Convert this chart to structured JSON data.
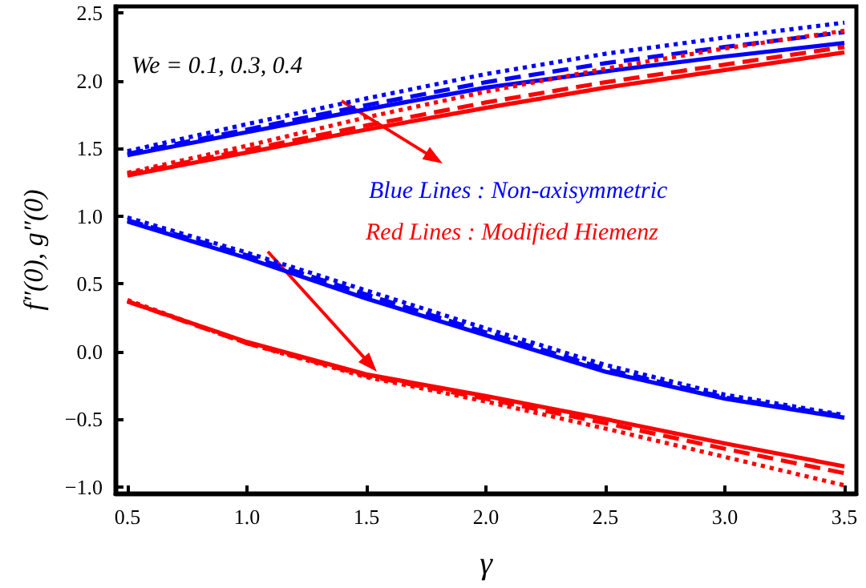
{
  "chart_data": {
    "type": "line",
    "xlabel": "γ",
    "ylabel": "f″(0), g″(0)",
    "x": [
      0.5,
      1,
      1.5,
      2,
      2.5,
      3,
      3.5
    ],
    "xlim": [
      0.45,
      3.55
    ],
    "ylim": [
      -1.05,
      2.55
    ],
    "xticks": [
      {
        "value": 0.5,
        "label": "0.5"
      },
      {
        "value": 1,
        "label": "1.0"
      },
      {
        "value": 1.5,
        "label": "1.5"
      },
      {
        "value": 2,
        "label": "2.0"
      },
      {
        "value": 2.5,
        "label": "2.5"
      },
      {
        "value": 3,
        "label": "3.0"
      },
      {
        "value": 3.5,
        "label": "3.5"
      }
    ],
    "yticks": [
      {
        "value": -1,
        "label": "−1.0"
      },
      {
        "value": -0.5,
        "label": "−0.5"
      },
      {
        "value": 0,
        "label": "0.0"
      },
      {
        "value": 0.5,
        "label": "0.5"
      },
      {
        "value": 1,
        "label": "1.0"
      },
      {
        "value": 1.5,
        "label": "1.5"
      },
      {
        "value": 2,
        "label": "2.0"
      },
      {
        "value": 2.5,
        "label": "2.5"
      }
    ],
    "grid": false,
    "marker": "none",
    "annotations": [
      "We = 0.1, 0.3, 0.4",
      "Blue Lines : Non-axisymmetric",
      "Red Lines : Modified Hiemenz"
    ],
    "series": [
      {
        "color": "#0000ff",
        "line_style": "solid",
        "values": [
          1.45,
          1.62,
          1.79,
          1.95,
          2.07,
          2.18,
          2.28
        ]
      },
      {
        "color": "#0000ff",
        "line_style": "dashed",
        "values": [
          1.46,
          1.64,
          1.82,
          1.99,
          2.13,
          2.25,
          2.36
        ]
      },
      {
        "color": "#0000ff",
        "line_style": "dotted",
        "values": [
          1.48,
          1.68,
          1.87,
          2.05,
          2.2,
          2.32,
          2.43
        ]
      },
      {
        "color": "#ff0000",
        "line_style": "solid",
        "values": [
          1.3,
          1.47,
          1.64,
          1.8,
          1.95,
          2.08,
          2.21
        ]
      },
      {
        "color": "#ff0000",
        "line_style": "dashed",
        "values": [
          1.31,
          1.49,
          1.67,
          1.84,
          1.99,
          2.12,
          2.25
        ]
      },
      {
        "color": "#ff0000",
        "line_style": "dotted",
        "values": [
          1.32,
          1.52,
          1.73,
          1.92,
          2.09,
          2.24,
          2.37
        ]
      },
      {
        "color": "#0000ff",
        "line_style": "solid",
        "values": [
          0.96,
          0.69,
          0.39,
          0.12,
          -0.15,
          -0.35,
          -0.49
        ]
      },
      {
        "color": "#0000ff",
        "line_style": "dashed",
        "values": [
          0.97,
          0.71,
          0.42,
          0.14,
          -0.13,
          -0.34,
          -0.48
        ]
      },
      {
        "color": "#0000ff",
        "line_style": "dotted",
        "values": [
          0.99,
          0.73,
          0.45,
          0.17,
          -0.1,
          -0.32,
          -0.47
        ]
      },
      {
        "color": "#ff0000",
        "line_style": "solid",
        "values": [
          0.37,
          0.07,
          -0.17,
          -0.33,
          -0.5,
          -0.68,
          -0.85
        ]
      },
      {
        "color": "#ff0000",
        "line_style": "dashed",
        "values": [
          0.37,
          0.06,
          -0.18,
          -0.35,
          -0.53,
          -0.72,
          -0.9
        ]
      },
      {
        "color": "#ff0000",
        "line_style": "dotted",
        "values": [
          0.38,
          0.06,
          -0.19,
          -0.37,
          -0.57,
          -0.78,
          -0.99
        ]
      }
    ]
  }
}
